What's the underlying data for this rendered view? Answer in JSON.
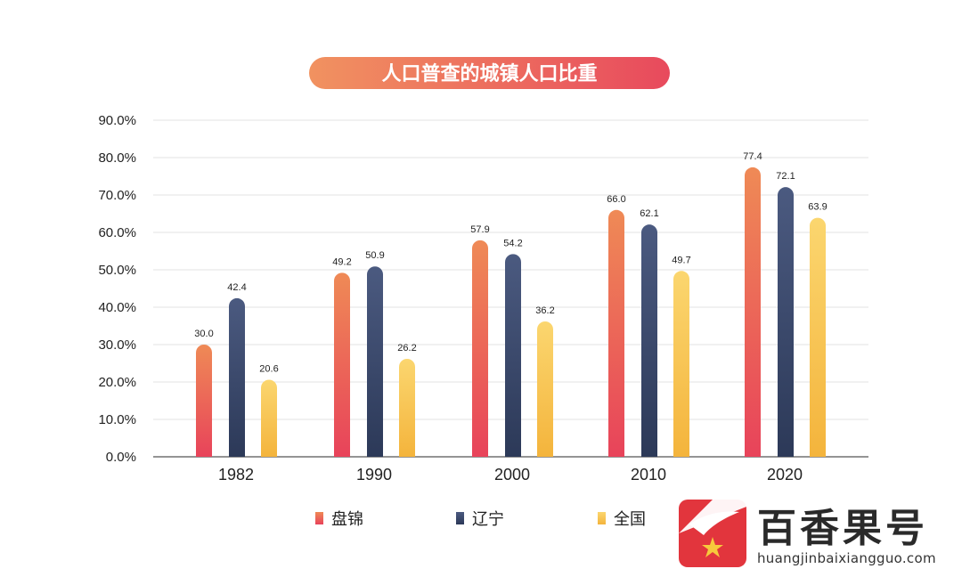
{
  "chart_data": {
    "type": "bar",
    "title": "人口普查的城镇人口比重",
    "categories": [
      "1982",
      "1990",
      "2000",
      "2010",
      "2020"
    ],
    "series": [
      {
        "name": "盘锦",
        "values": [
          30.0,
          49.2,
          57.9,
          66.0,
          77.4
        ],
        "color_top": "#ef8a56",
        "color_bottom": "#e8435a"
      },
      {
        "name": "辽宁",
        "values": [
          42.4,
          50.9,
          54.2,
          62.1,
          72.1
        ],
        "color_top": "#4b5a80",
        "color_bottom": "#2c3958"
      },
      {
        "name": "全国",
        "values": [
          20.6,
          26.2,
          36.2,
          49.7,
          63.9
        ],
        "color_top": "#fbd66f",
        "color_bottom": "#f4b43c"
      }
    ],
    "data_labels": [
      [
        "30.0",
        "49.2",
        "57.9",
        "66.0",
        "77.4"
      ],
      [
        "42.4",
        "50.9",
        "54.2",
        "62.1",
        "72.1"
      ],
      [
        "20.6",
        "26.2",
        "36.2",
        "49.7",
        "63.9"
      ]
    ],
    "yticks": [
      0,
      10,
      20,
      30,
      40,
      50,
      60,
      70,
      80,
      90
    ],
    "ytick_labels": [
      "0.0%",
      "10.0%",
      "20.0%",
      "30.0%",
      "40.0%",
      "50.0%",
      "60.0%",
      "70.0%",
      "80.0%",
      "90.0%"
    ],
    "ylim": [
      0,
      90
    ],
    "grid": true,
    "legend_position": "bottom"
  },
  "colors": {
    "title_gradient_left": "#f19260",
    "title_gradient_right": "#e84a5d",
    "grid": "#e3e3e3",
    "axis": "#555555",
    "text": "#222222",
    "brand_red": "#e2353d"
  },
  "watermark": {
    "name": "百香果号",
    "url": "huangjinbaixiangguo.com",
    "logo_icon": "star-plane-logo-icon"
  }
}
